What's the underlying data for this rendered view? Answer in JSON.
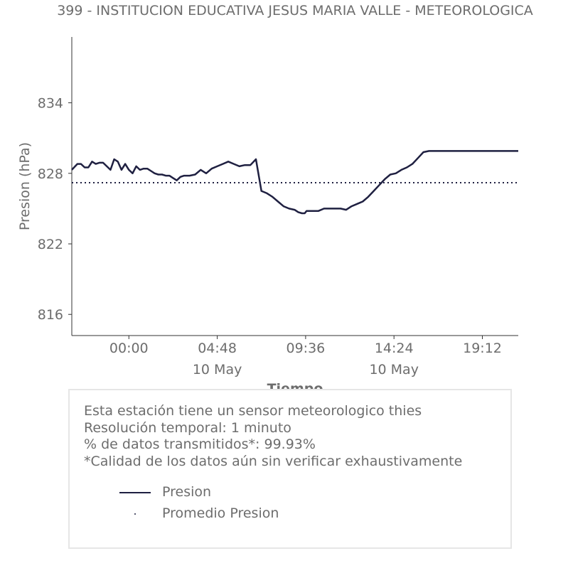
{
  "chart_data": {
    "type": "line",
    "title": "399 - INSTITUCION EDUCATIVA JESUS MARIA VALLE - METEOROLOGICA",
    "xlabel": "Tiempo",
    "ylabel": "Presion (hPa)",
    "ylim": [
      814.2,
      839.6
    ],
    "x_unit": "hours since 00:00 (9 May)",
    "xlim": [
      -3.1,
      21.15
    ],
    "x_ticks": [
      {
        "x": 0,
        "label": "00:00",
        "sublabel": ""
      },
      {
        "x": 4.8,
        "label": "04:48",
        "sublabel": "10 May"
      },
      {
        "x": 9.6,
        "label": "09:36",
        "sublabel": ""
      },
      {
        "x": 14.4,
        "label": "14:24",
        "sublabel": "10 May"
      },
      {
        "x": 19.2,
        "label": "19:12",
        "sublabel": ""
      }
    ],
    "y_ticks": [
      816,
      822,
      828,
      834
    ],
    "series": [
      {
        "name": "Presion",
        "color": "#1f2041",
        "style": "solid",
        "x": [
          -3.1,
          -2.8,
          -2.6,
          -2.4,
          -2.2,
          -2.0,
          -1.8,
          -1.6,
          -1.4,
          -1.2,
          -1.0,
          -0.8,
          -0.6,
          -0.4,
          -0.2,
          0.0,
          0.2,
          0.4,
          0.6,
          0.8,
          1.0,
          1.2,
          1.4,
          1.6,
          1.8,
          2.0,
          2.2,
          2.4,
          2.6,
          2.8,
          3.0,
          3.3,
          3.6,
          3.9,
          4.2,
          4.5,
          4.8,
          5.1,
          5.4,
          5.7,
          6.0,
          6.3,
          6.6,
          6.9,
          7.2,
          7.5,
          7.8,
          8.1,
          8.4,
          8.7,
          9.0,
          9.2,
          9.4,
          9.5,
          9.55,
          9.6,
          9.65,
          9.8,
          10.0,
          10.3,
          10.6,
          10.9,
          11.2,
          11.5,
          11.8,
          12.1,
          12.4,
          12.7,
          13.0,
          13.3,
          13.6,
          13.9,
          14.2,
          14.5,
          14.8,
          15.1,
          15.4,
          15.7,
          16.0,
          16.3,
          16.6,
          16.9,
          17.2,
          17.5,
          17.8,
          18.1,
          18.4,
          18.7,
          19.0,
          19.3,
          19.6,
          19.9,
          20.2,
          20.5,
          20.8,
          21.0,
          21.15
        ],
        "y": [
          828.3,
          828.8,
          828.8,
          828.5,
          828.5,
          829.0,
          828.8,
          828.9,
          828.9,
          828.6,
          828.3,
          829.2,
          829.0,
          828.3,
          828.8,
          828.3,
          828.0,
          828.6,
          828.3,
          828.4,
          828.4,
          828.2,
          828.0,
          827.9,
          827.9,
          827.8,
          827.8,
          827.6,
          827.4,
          827.7,
          827.8,
          827.8,
          827.9,
          828.3,
          828.0,
          828.4,
          828.6,
          828.8,
          829.0,
          828.8,
          828.6,
          828.7,
          828.7,
          829.2,
          826.5,
          826.3,
          826.0,
          825.6,
          825.2,
          825.0,
          824.9,
          824.7,
          824.6,
          824.6,
          824.6,
          824.7,
          824.8,
          824.8,
          824.8,
          824.8,
          825.0,
          825.0,
          825.0,
          825.0,
          824.9,
          825.2,
          825.4,
          825.6,
          826.0,
          826.5,
          827.0,
          827.5,
          827.9,
          828.0,
          828.3,
          828.5,
          828.8,
          829.3,
          829.8,
          829.9,
          829.9,
          829.9,
          829.9,
          829.9,
          829.9,
          829.9,
          829.9,
          829.9,
          829.9,
          829.9,
          829.9,
          829.9,
          829.9,
          829.9,
          829.9,
          829.9,
          829.9
        ]
      },
      {
        "name": "Promedio Presion",
        "color": "#1f2041",
        "style": "dotted",
        "x": [
          -3.1,
          21.15
        ],
        "y": [
          827.2,
          827.2
        ]
      }
    ],
    "grid": false,
    "legend_position": "inside info box, bottom-left"
  },
  "info": {
    "line1": "Esta estación tiene un sensor meteorologico thies",
    "line2": "Resolución temporal: 1 minuto",
    "line3": "% de datos transmitidos*: 99.93%",
    "line4": "*Calidad de los datos aún sin verificar exhaustivamente"
  },
  "legend": {
    "item1": "Presion",
    "item2": "Promedio Presion"
  }
}
